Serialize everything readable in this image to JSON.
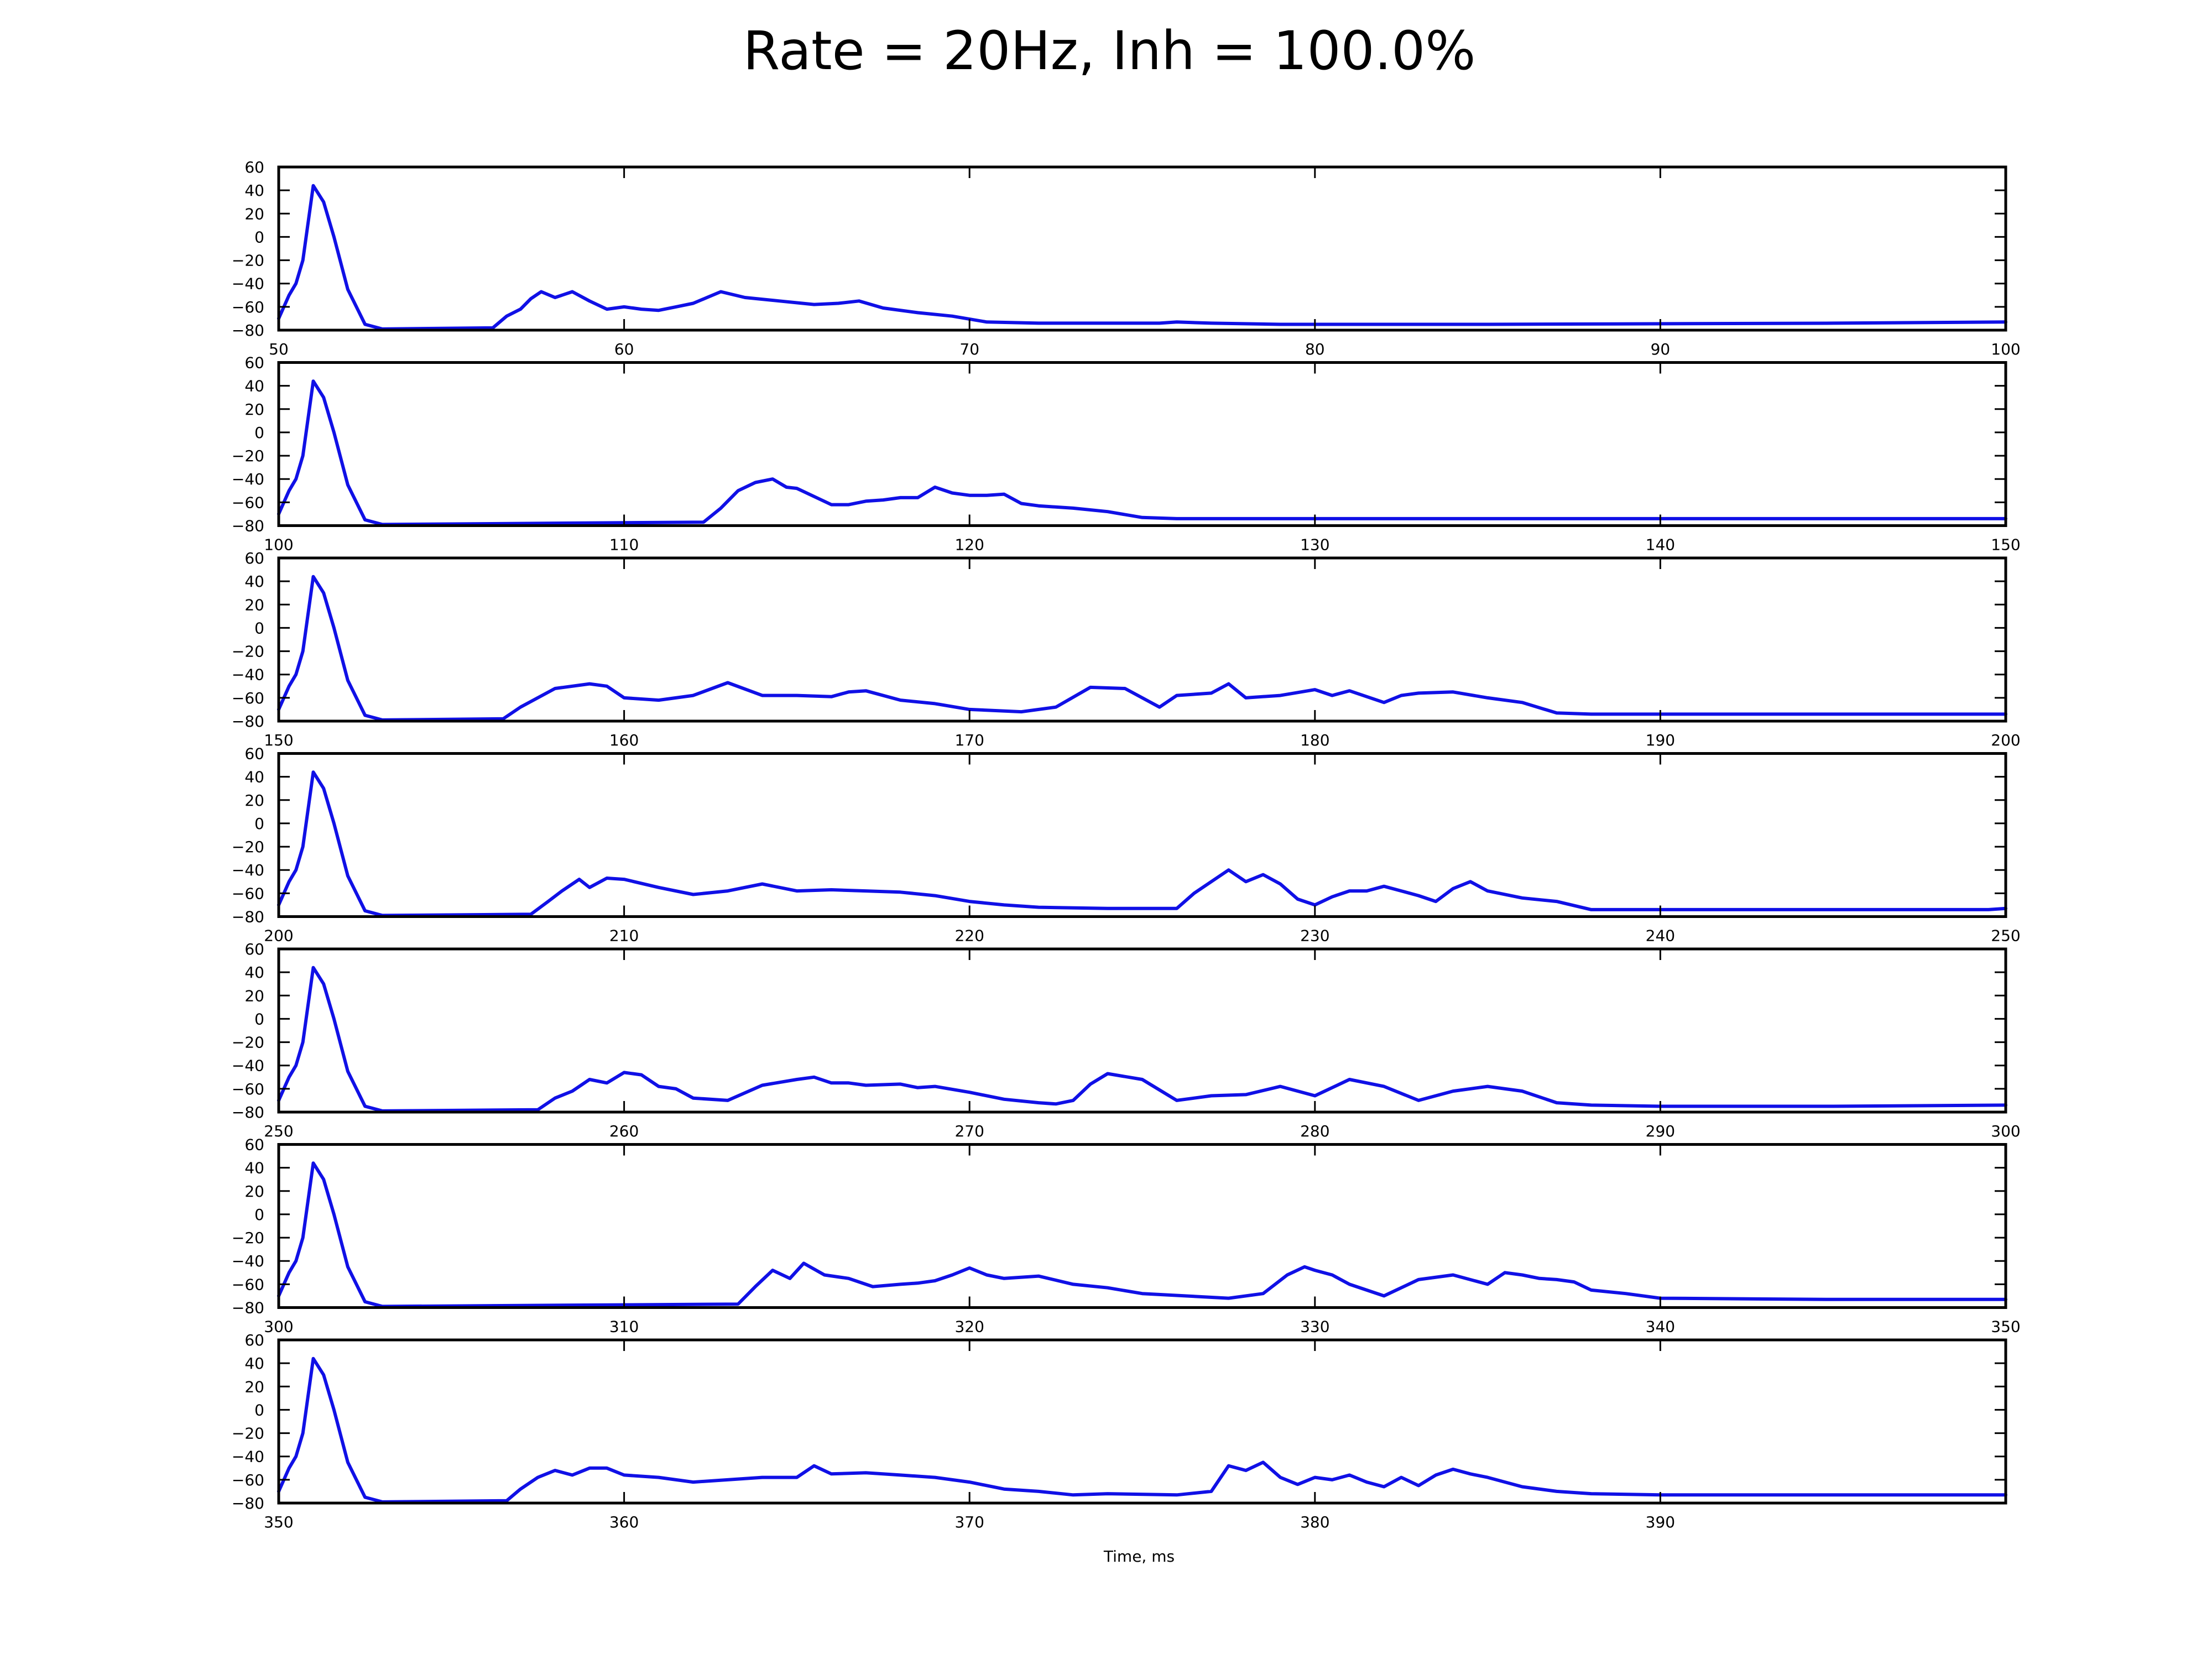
{
  "figure": {
    "title": "Rate = 20Hz, Inh = 100.0%",
    "xlabel": "Time, ms"
  },
  "style": {
    "line_color": "#1010e6",
    "axes_color": "#000000",
    "background": "#ffffff"
  },
  "chart_data": {
    "type": "line",
    "title": "Rate = 20Hz, Inh = 100.0%",
    "xlabel": "Time, ms",
    "ylabel": "",
    "ylim": [
      -80,
      60
    ],
    "yticks": [
      -80,
      -60,
      -40,
      -20,
      0,
      20,
      40,
      60
    ],
    "grid": false,
    "panels": [
      {
        "xlim": [
          50,
          100
        ],
        "xticks": [
          50,
          60,
          70,
          80,
          90,
          100
        ],
        "x": [
          50,
          50.3,
          50.5,
          50.7,
          51,
          51.3,
          51.6,
          52,
          52.5,
          53,
          56.2,
          56.6,
          57,
          57.3,
          57.6,
          58,
          58.5,
          59,
          59.5,
          60,
          60.5,
          61,
          61.5,
          62,
          62.4,
          62.8,
          63.5,
          64.5,
          65.5,
          66.2,
          66.8,
          67.5,
          68.5,
          69.5,
          70.5,
          72,
          75.5,
          76,
          77,
          79,
          85,
          95,
          100
        ],
        "y": [
          -70,
          -50,
          -40,
          -20,
          44,
          30,
          0,
          -45,
          -75,
          -79,
          -78,
          -68,
          -62,
          -53,
          -47,
          -52,
          -47,
          -55,
          -62,
          -60,
          -62,
          -63,
          -60,
          -57,
          -52,
          -47,
          -52,
          -55,
          -58,
          -57,
          -55,
          -61,
          -65,
          -68,
          -73,
          -74,
          -74,
          -73,
          -74,
          -75,
          -75,
          -74,
          -73
        ]
      },
      {
        "xlim": [
          100,
          150
        ],
        "xticks": [
          100,
          110,
          120,
          130,
          140,
          150
        ],
        "x": [
          100,
          100.3,
          100.5,
          100.7,
          101,
          101.3,
          101.6,
          102,
          102.5,
          103,
          112.3,
          112.8,
          113.3,
          113.8,
          114.3,
          114.7,
          115,
          115.5,
          116,
          116.5,
          117,
          117.5,
          118,
          118.5,
          119,
          119.5,
          120,
          120.5,
          121,
          121.5,
          122,
          123,
          124,
          125,
          126,
          130,
          140,
          150
        ],
        "y": [
          -70,
          -50,
          -40,
          -20,
          44,
          30,
          0,
          -45,
          -75,
          -79,
          -77,
          -65,
          -50,
          -43,
          -40,
          -47,
          -48,
          -55,
          -62,
          -62,
          -59,
          -58,
          -56,
          -56,
          -47,
          -52,
          -54,
          -54,
          -53,
          -61,
          -63,
          -65,
          -68,
          -73,
          -74,
          -74,
          -74,
          -74
        ]
      },
      {
        "xlim": [
          150,
          200
        ],
        "xticks": [
          150,
          160,
          170,
          180,
          190,
          200
        ],
        "x": [
          150,
          150.3,
          150.5,
          150.7,
          151,
          151.3,
          151.6,
          152,
          152.5,
          153,
          156.5,
          157,
          158,
          159,
          159.5,
          160,
          161,
          162,
          163,
          164,
          165,
          166,
          166.5,
          167,
          168,
          169,
          170,
          171.5,
          172.5,
          173.5,
          174.5,
          175.5,
          176,
          177,
          177.5,
          178,
          179,
          180,
          180.5,
          181,
          182,
          182.5,
          183,
          184,
          185,
          186,
          187,
          188,
          190,
          195,
          200
        ],
        "y": [
          -70,
          -50,
          -40,
          -20,
          44,
          30,
          0,
          -45,
          -75,
          -79,
          -78,
          -68,
          -52,
          -48,
          -50,
          -60,
          -62,
          -58,
          -47,
          -58,
          -58,
          -59,
          -55,
          -54,
          -62,
          -65,
          -70,
          -72,
          -68,
          -51,
          -52,
          -68,
          -58,
          -56,
          -48,
          -60,
          -58,
          -53,
          -58,
          -54,
          -64,
          -58,
          -56,
          -55,
          -60,
          -64,
          -73,
          -74,
          -74,
          -74,
          -74
        ]
      },
      {
        "xlim": [
          200,
          250
        ],
        "xticks": [
          200,
          210,
          220,
          230,
          240,
          250
        ],
        "x": [
          200,
          200.3,
          200.5,
          200.7,
          201,
          201.3,
          201.6,
          202,
          202.5,
          203,
          207.3,
          207.8,
          208.2,
          208.7,
          209,
          209.5,
          210,
          211,
          212,
          213,
          214,
          215,
          216,
          217,
          218,
          219,
          220,
          221,
          222,
          224,
          226,
          226.5,
          227.5,
          228,
          228.5,
          229,
          229.5,
          230,
          230.5,
          231,
          231.5,
          232,
          232.5,
          233,
          233.5,
          234,
          234.5,
          235,
          236,
          237,
          238,
          240,
          245,
          249.5,
          250
        ],
        "y": [
          -70,
          -50,
          -40,
          -20,
          44,
          30,
          0,
          -45,
          -75,
          -79,
          -78,
          -67,
          -58,
          -48,
          -55,
          -47,
          -48,
          -55,
          -61,
          -58,
          -52,
          -58,
          -57,
          -58,
          -59,
          -62,
          -67,
          -70,
          -72,
          -73,
          -73,
          -60,
          -40,
          -50,
          -44,
          -52,
          -65,
          -70,
          -63,
          -58,
          -58,
          -54,
          -58,
          -62,
          -67,
          -56,
          -50,
          -58,
          -64,
          -67,
          -74,
          -74,
          -74,
          -74,
          -73
        ]
      },
      {
        "xlim": [
          250,
          300
        ],
        "xticks": [
          250,
          260,
          270,
          280,
          290,
          300
        ],
        "x": [
          250,
          250.3,
          250.5,
          250.7,
          251,
          251.3,
          251.6,
          252,
          252.5,
          253,
          257.5,
          258,
          258.5,
          259,
          259.5,
          260,
          260.5,
          261,
          261.5,
          262,
          263,
          264,
          265,
          265.5,
          266,
          266.5,
          267,
          268,
          268.5,
          269,
          270,
          271,
          272,
          272.5,
          273,
          273.5,
          274,
          275,
          276,
          277,
          278,
          279,
          280,
          281,
          282,
          283,
          284,
          285,
          286,
          287,
          288,
          290,
          295,
          300
        ],
        "y": [
          -70,
          -50,
          -40,
          -20,
          44,
          30,
          0,
          -45,
          -75,
          -79,
          -78,
          -68,
          -62,
          -52,
          -55,
          -46,
          -48,
          -58,
          -60,
          -68,
          -70,
          -57,
          -52,
          -50,
          -55,
          -55,
          -57,
          -56,
          -59,
          -58,
          -63,
          -69,
          -72,
          -73,
          -70,
          -56,
          -47,
          -52,
          -70,
          -66,
          -65,
          -58,
          -66,
          -52,
          -58,
          -70,
          -62,
          -58,
          -62,
          -72,
          -74,
          -75,
          -75,
          -74
        ]
      },
      {
        "xlim": [
          300,
          350
        ],
        "xticks": [
          300,
          310,
          320,
          330,
          340,
          350
        ],
        "x": [
          300,
          300.3,
          300.5,
          300.7,
          301,
          301.3,
          301.6,
          302,
          302.5,
          303,
          313.3,
          313.8,
          314.3,
          314.8,
          315.2,
          315.8,
          316.5,
          317.2,
          318,
          318.5,
          319,
          319.5,
          320,
          320.5,
          321,
          322,
          323,
          324,
          325,
          327.5,
          328.5,
          329.2,
          329.7,
          330,
          330.5,
          331,
          332,
          333,
          334,
          335,
          335.5,
          336,
          336.5,
          337,
          337.5,
          338,
          339,
          340,
          345,
          350
        ],
        "y": [
          -70,
          -50,
          -40,
          -20,
          44,
          30,
          0,
          -45,
          -75,
          -79,
          -77,
          -62,
          -48,
          -55,
          -42,
          -52,
          -55,
          -62,
          -60,
          -59,
          -57,
          -52,
          -46,
          -52,
          -55,
          -53,
          -60,
          -63,
          -68,
          -72,
          -68,
          -52,
          -45,
          -48,
          -52,
          -60,
          -70,
          -56,
          -52,
          -60,
          -50,
          -52,
          -55,
          -56,
          -58,
          -65,
          -68,
          -72,
          -73,
          -73
        ]
      },
      {
        "xlim": [
          350,
          400
        ],
        "xticks": [
          350,
          360,
          370,
          380,
          390
        ],
        "x": [
          350,
          350.3,
          350.5,
          350.7,
          351,
          351.3,
          351.6,
          352,
          352.5,
          353,
          356.6,
          357,
          357.5,
          358,
          358.5,
          359,
          359.5,
          360,
          361,
          362,
          363,
          364,
          365,
          365.5,
          366,
          367,
          368,
          369,
          370,
          371,
          372,
          373,
          374,
          376,
          377,
          377.5,
          378,
          378.5,
          379,
          379.5,
          380,
          380.5,
          381,
          381.5,
          382,
          382.5,
          383,
          383.5,
          384,
          384.5,
          385,
          386,
          387,
          388,
          390,
          395,
          400
        ],
        "y": [
          -70,
          -50,
          -40,
          -20,
          44,
          30,
          0,
          -45,
          -75,
          -79,
          -78,
          -68,
          -58,
          -52,
          -56,
          -50,
          -50,
          -56,
          -58,
          -62,
          -60,
          -58,
          -58,
          -48,
          -55,
          -54,
          -56,
          -58,
          -62,
          -68,
          -70,
          -73,
          -72,
          -73,
          -70,
          -48,
          -52,
          -45,
          -58,
          -64,
          -58,
          -60,
          -56,
          -62,
          -66,
          -58,
          -65,
          -56,
          -51,
          -55,
          -58,
          -66,
          -70,
          -72,
          -73,
          -73,
          -73
        ]
      }
    ]
  }
}
